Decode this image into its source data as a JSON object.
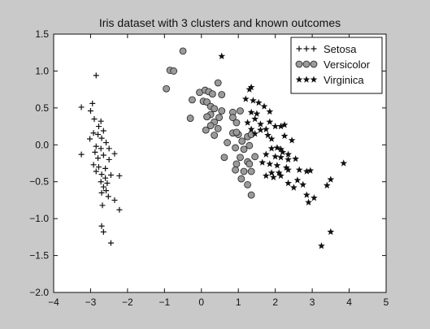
{
  "chart_data": {
    "type": "scatter",
    "title": "Iris  dataset with 3 clusters and known outcomes",
    "xlabel": "",
    "ylabel": "",
    "xlim": [
      -4,
      5
    ],
    "ylim": [
      -2.0,
      1.5
    ],
    "xticks": [
      -4,
      -3,
      -2,
      -1,
      0,
      1,
      2,
      3,
      4,
      5
    ],
    "xtick_labels": [
      "−4",
      "−3",
      "−2",
      "−1",
      "0",
      "1",
      "2",
      "3",
      "4",
      "5"
    ],
    "yticks": [
      -2.0,
      -1.5,
      -1.0,
      -0.5,
      0.0,
      0.5,
      1.0,
      1.5
    ],
    "ytick_labels": [
      "−2.0",
      "−1.5",
      "−1.0",
      "−0.5",
      "0.0",
      "0.5",
      "1.0",
      "1.5"
    ],
    "grid": false,
    "legend_position": "top-right",
    "series": [
      {
        "name": "Setosa",
        "marker": "plus",
        "color": "#111111",
        "points": [
          [
            -2.85,
            0.94
          ],
          [
            -2.95,
            0.56
          ],
          [
            -3.25,
            0.51
          ],
          [
            -3.0,
            0.46
          ],
          [
            -2.72,
            0.32
          ],
          [
            -2.9,
            0.35
          ],
          [
            -2.78,
            0.25
          ],
          [
            -2.65,
            0.19
          ],
          [
            -2.92,
            0.16
          ],
          [
            -2.8,
            0.14
          ],
          [
            -2.7,
            0.09
          ],
          [
            -3.02,
            0.08
          ],
          [
            -2.58,
            0.03
          ],
          [
            -2.85,
            -0.02
          ],
          [
            -2.72,
            -0.05
          ],
          [
            -2.5,
            -0.05
          ],
          [
            -2.88,
            -0.1
          ],
          [
            -3.25,
            -0.13
          ],
          [
            -2.65,
            -0.14
          ],
          [
            -2.35,
            -0.12
          ],
          [
            -2.8,
            -0.18
          ],
          [
            -2.5,
            -0.2
          ],
          [
            -2.92,
            -0.27
          ],
          [
            -2.78,
            -0.3
          ],
          [
            -2.6,
            -0.32
          ],
          [
            -2.85,
            -0.36
          ],
          [
            -2.7,
            -0.4
          ],
          [
            -2.45,
            -0.41
          ],
          [
            -2.22,
            -0.42
          ],
          [
            -2.6,
            -0.45
          ],
          [
            -2.72,
            -0.5
          ],
          [
            -2.55,
            -0.52
          ],
          [
            -2.65,
            -0.57
          ],
          [
            -2.58,
            -0.62
          ],
          [
            -2.7,
            -0.65
          ],
          [
            -2.52,
            -0.7
          ],
          [
            -2.35,
            -0.75
          ],
          [
            -2.68,
            -0.82
          ],
          [
            -2.22,
            -0.88
          ],
          [
            -2.7,
            -1.1
          ],
          [
            -2.65,
            -1.18
          ],
          [
            -2.45,
            -1.33
          ]
        ]
      },
      {
        "name": "Versicolor",
        "marker": "circle",
        "color": "#9a9a9a",
        "points": [
          [
            -0.85,
            1.01
          ],
          [
            -0.75,
            1.0
          ],
          [
            -0.5,
            1.27
          ],
          [
            -0.95,
            0.76
          ],
          [
            -0.05,
            0.71
          ],
          [
            0.45,
            0.84
          ],
          [
            0.1,
            0.74
          ],
          [
            0.2,
            0.72
          ],
          [
            0.3,
            0.69
          ],
          [
            0.55,
            0.68
          ],
          [
            -0.25,
            0.61
          ],
          [
            0.05,
            0.59
          ],
          [
            0.15,
            0.58
          ],
          [
            0.25,
            0.52
          ],
          [
            0.35,
            0.49
          ],
          [
            0.55,
            0.46
          ],
          [
            0.85,
            0.44
          ],
          [
            1.05,
            0.46
          ],
          [
            0.25,
            0.41
          ],
          [
            0.15,
            0.38
          ],
          [
            0.48,
            0.37
          ],
          [
            0.85,
            0.37
          ],
          [
            -0.3,
            0.36
          ],
          [
            0.35,
            0.31
          ],
          [
            0.95,
            0.3
          ],
          [
            0.25,
            0.26
          ],
          [
            0.45,
            0.22
          ],
          [
            0.12,
            0.2
          ],
          [
            0.35,
            0.13
          ],
          [
            0.85,
            0.16
          ],
          [
            1.0,
            0.14
          ],
          [
            0.95,
            0.17
          ],
          [
            1.25,
            0.11
          ],
          [
            1.35,
            0.14
          ],
          [
            0.7,
            0.03
          ],
          [
            1.1,
            0.05
          ],
          [
            1.3,
            -0.01
          ],
          [
            0.92,
            -0.04
          ],
          [
            1.15,
            -0.06
          ],
          [
            0.62,
            -0.17
          ],
          [
            1.05,
            -0.17
          ],
          [
            1.45,
            -0.16
          ],
          [
            1.25,
            -0.23
          ],
          [
            0.95,
            -0.26
          ],
          [
            1.3,
            -0.26
          ],
          [
            0.92,
            -0.34
          ],
          [
            1.15,
            -0.36
          ],
          [
            1.35,
            -0.36
          ],
          [
            1.08,
            -0.46
          ],
          [
            1.25,
            -0.54
          ],
          [
            1.35,
            -0.68
          ]
        ]
      },
      {
        "name": "Virginica",
        "marker": "star",
        "color": "#111111",
        "points": [
          [
            0.55,
            1.2
          ],
          [
            1.35,
            0.78
          ],
          [
            1.3,
            0.75
          ],
          [
            1.2,
            0.62
          ],
          [
            1.4,
            0.6
          ],
          [
            1.55,
            0.57
          ],
          [
            1.7,
            0.52
          ],
          [
            1.35,
            0.44
          ],
          [
            1.5,
            0.42
          ],
          [
            1.85,
            0.45
          ],
          [
            1.45,
            0.35
          ],
          [
            1.25,
            0.3
          ],
          [
            1.6,
            0.28
          ],
          [
            1.85,
            0.31
          ],
          [
            2.0,
            0.25
          ],
          [
            2.15,
            0.25
          ],
          [
            2.25,
            0.27
          ],
          [
            1.35,
            0.21
          ],
          [
            1.6,
            0.2
          ],
          [
            1.75,
            0.21
          ],
          [
            1.45,
            0.15
          ],
          [
            1.8,
            0.13
          ],
          [
            2.25,
            0.12
          ],
          [
            1.9,
            0.08
          ],
          [
            2.45,
            0.06
          ],
          [
            1.9,
            -0.05
          ],
          [
            2.05,
            -0.04
          ],
          [
            2.15,
            -0.06
          ],
          [
            2.2,
            -0.1
          ],
          [
            2.35,
            -0.13
          ],
          [
            1.75,
            -0.13
          ],
          [
            2.0,
            -0.16
          ],
          [
            2.15,
            -0.17
          ],
          [
            2.35,
            -0.2
          ],
          [
            2.55,
            -0.19
          ],
          [
            1.65,
            -0.24
          ],
          [
            1.85,
            -0.26
          ],
          [
            2.05,
            -0.28
          ],
          [
            2.3,
            -0.31
          ],
          [
            1.9,
            -0.38
          ],
          [
            2.1,
            -0.38
          ],
          [
            2.35,
            -0.34
          ],
          [
            2.65,
            -0.34
          ],
          [
            2.85,
            -0.36
          ],
          [
            2.95,
            -0.35
          ],
          [
            1.75,
            -0.42
          ],
          [
            1.95,
            -0.44
          ],
          [
            2.15,
            -0.42
          ],
          [
            2.6,
            -0.48
          ],
          [
            2.35,
            -0.52
          ],
          [
            2.75,
            -0.54
          ],
          [
            2.5,
            -0.58
          ],
          [
            2.85,
            -0.68
          ],
          [
            3.05,
            -0.72
          ],
          [
            3.4,
            -0.55
          ],
          [
            3.5,
            -0.47
          ],
          [
            3.85,
            -0.25
          ],
          [
            2.9,
            -0.78
          ],
          [
            3.5,
            -1.18
          ],
          [
            3.25,
            -1.37
          ]
        ]
      }
    ]
  }
}
